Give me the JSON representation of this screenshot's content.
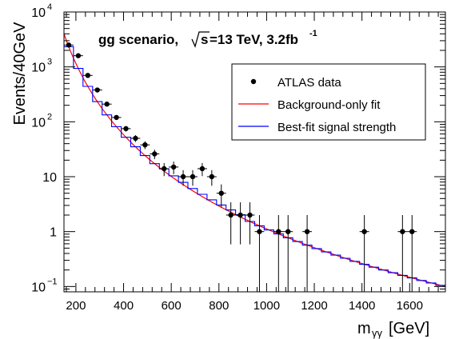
{
  "chart_data": {
    "type": "scatter",
    "title_parts": {
      "prefix": "gg scenario,",
      "sqrt": "s",
      "energy": "=13 TeV, 3.2fb",
      "lumi_exp": "-1"
    },
    "xlabel": "m",
    "xlabel_sub": "γγ",
    "xlabel_unit": "[GeV]",
    "ylabel": "Events/40GeV",
    "xlim": [
      150,
      1750
    ],
    "ylim": [
      0.08,
      10000
    ],
    "y_scale": "log",
    "x_ticks": [
      200,
      400,
      600,
      800,
      1000,
      1200,
      1400,
      1600
    ],
    "x_tick_labels": [
      "200",
      "400",
      "600",
      "800",
      "1000",
      "1200",
      "1400",
      "1600"
    ],
    "y_ticks": [
      {
        "value": 10000,
        "base": "10",
        "exp": "4"
      },
      {
        "value": 1000,
        "base": "10",
        "exp": "3"
      },
      {
        "value": 100,
        "base": "10",
        "exp": "2"
      },
      {
        "value": 10,
        "base": "10",
        "exp": ""
      },
      {
        "value": 1,
        "base": "1",
        "exp": ""
      },
      {
        "value": 0.1,
        "base": "10",
        "exp": "−1"
      }
    ],
    "legend_placement": "upper-right",
    "legend": [
      {
        "label": "ATLAS data",
        "kind": "marker",
        "color": "#000000"
      },
      {
        "label": "Background-only fit",
        "kind": "line",
        "color": "#ff0000"
      },
      {
        "label": "Best-fit signal strength",
        "kind": "line",
        "color": "#0000ff"
      }
    ],
    "series": [
      {
        "name": "ATLAS data",
        "kind": "points",
        "color": "#000000",
        "x_halfwidth": 20,
        "points": [
          {
            "x": 170,
            "y": 2500
          },
          {
            "x": 210,
            "y": 1600
          },
          {
            "x": 250,
            "y": 700
          },
          {
            "x": 290,
            "y": 380
          },
          {
            "x": 330,
            "y": 210
          },
          {
            "x": 370,
            "y": 120
          },
          {
            "x": 410,
            "y": 75
          },
          {
            "x": 450,
            "y": 50
          },
          {
            "x": 490,
            "y": 38
          },
          {
            "x": 530,
            "y": 26
          },
          {
            "x": 570,
            "y": 14
          },
          {
            "x": 610,
            "y": 15
          },
          {
            "x": 650,
            "y": 10
          },
          {
            "x": 690,
            "y": 10
          },
          {
            "x": 730,
            "y": 14
          },
          {
            "x": 770,
            "y": 10
          },
          {
            "x": 810,
            "y": 5
          },
          {
            "x": 850,
            "y": 2
          },
          {
            "x": 890,
            "y": 2
          },
          {
            "x": 930,
            "y": 2
          },
          {
            "x": 970,
            "y": 1
          },
          {
            "x": 1050,
            "y": 1
          },
          {
            "x": 1090,
            "y": 1
          },
          {
            "x": 1170,
            "y": 1
          },
          {
            "x": 1410,
            "y": 1
          },
          {
            "x": 1570,
            "y": 1
          },
          {
            "x": 1610,
            "y": 1
          }
        ]
      },
      {
        "name": "Background-only fit",
        "kind": "curve",
        "color": "#ff0000",
        "model": "power-law",
        "anchors": [
          {
            "x": 150,
            "y": 4000
          },
          {
            "x": 1750,
            "y": 0.1
          }
        ]
      },
      {
        "name": "Best-fit signal strength",
        "kind": "histogram",
        "color": "#0000ff",
        "model": "stepped background with mild excess",
        "bin_width": 40
      }
    ]
  }
}
